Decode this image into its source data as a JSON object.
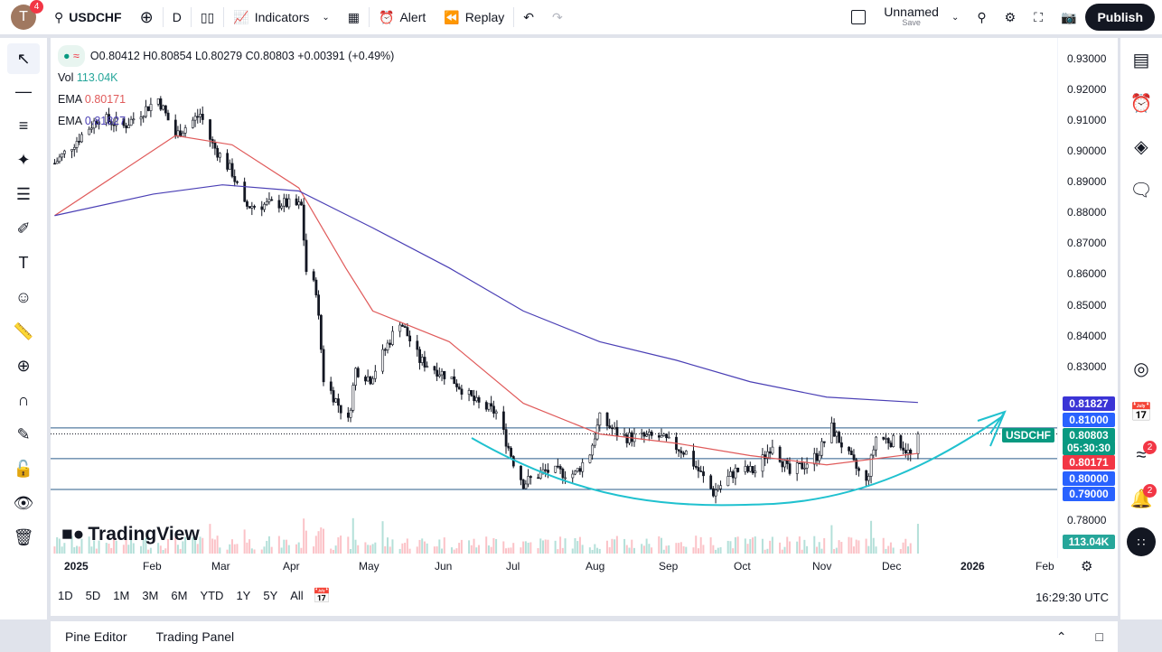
{
  "toolbar": {
    "avatar_letter": "T",
    "avatar_badge": "4",
    "symbol": "USDCHF",
    "interval": "D",
    "indicators": "Indicators",
    "alert": "Alert",
    "replay": "Replay",
    "layout_name": "Unnamed",
    "layout_save": "Save",
    "publish": "Publish"
  },
  "legend": {
    "ohlc": "O0.80412 H0.80854 L0.80279 C0.80803 +0.00391 (+0.49%)",
    "vol_label": "Vol",
    "vol_value": "113.04K",
    "ema1_label": "EMA",
    "ema1_value": "0.80171",
    "ema2_label": "EMA",
    "ema2_value": "0.81827"
  },
  "colors": {
    "up": "#089981",
    "down": "#f23645",
    "ema_fast": "#e05a5a",
    "ema_slow": "#4a3fb5",
    "drawing": "#20c1cf",
    "hline": "#2a5c8a"
  },
  "price_axis": {
    "ticks": [
      "0.93000",
      "0.92000",
      "0.91000",
      "0.90000",
      "0.89000",
      "0.88000",
      "0.87000",
      "0.86000",
      "0.85000",
      "0.84000",
      "0.83000",
      "0.78000"
    ],
    "tags": [
      {
        "text": "0.81827",
        "color": "#3b34d6"
      },
      {
        "text": "0.81000",
        "color": "#2962ff"
      },
      {
        "text": "0.80803",
        "color": "#089981"
      },
      {
        "text": "05:30:30",
        "color": "#089981"
      },
      {
        "text": "0.80171",
        "color": "#f23645"
      },
      {
        "text": "0.80000",
        "color": "#2962ff"
      },
      {
        "text": "0.79000",
        "color": "#2962ff"
      },
      {
        "text": "113.04K",
        "color": "#26a69a"
      }
    ],
    "symbol_tag": "USDCHF"
  },
  "time_axis": [
    "2025",
    "Feb",
    "Mar",
    "Apr",
    "May",
    "Jun",
    "Jul",
    "Aug",
    "Sep",
    "Oct",
    "Nov",
    "Dec",
    "2026",
    "Feb"
  ],
  "ranges": [
    "1D",
    "5D",
    "1M",
    "3M",
    "6M",
    "YTD",
    "1Y",
    "5Y",
    "All"
  ],
  "clock": "16:29:30 UTC",
  "watermark": "TradingView",
  "bottom": {
    "pine": "Pine Editor",
    "trading": "Trading Panel"
  },
  "right_badges": {
    "news": "2",
    "alerts": "2"
  },
  "chart_data": {
    "type": "candlestick",
    "symbol": "USDCHF",
    "interval": "1D",
    "ylim": [
      0.775,
      0.935
    ],
    "closes": [
      [
        "2024-12-23",
        0.896
      ],
      [
        "2025-01-10",
        0.911
      ],
      [
        "2025-01-20",
        0.908
      ],
      [
        "2025-02-03",
        0.917
      ],
      [
        "2025-02-10",
        0.905
      ],
      [
        "2025-02-20",
        0.912
      ],
      [
        "2025-02-25",
        0.902
      ],
      [
        "2025-03-05",
        0.893
      ],
      [
        "2025-03-10",
        0.882
      ],
      [
        "2025-03-25",
        0.883
      ],
      [
        "2025-04-02",
        0.882
      ],
      [
        "2025-04-04",
        0.861
      ],
      [
        "2025-04-08",
        0.855
      ],
      [
        "2025-04-11",
        0.826
      ],
      [
        "2025-04-21",
        0.812
      ],
      [
        "2025-04-24",
        0.829
      ],
      [
        "2025-04-30",
        0.826
      ],
      [
        "2025-05-12",
        0.845
      ],
      [
        "2025-05-20",
        0.832
      ],
      [
        "2025-06-02",
        0.826
      ],
      [
        "2025-06-12",
        0.818
      ],
      [
        "2025-06-20",
        0.815
      ],
      [
        "2025-06-27",
        0.799
      ],
      [
        "2025-07-01",
        0.792
      ],
      [
        "2025-07-10",
        0.796
      ],
      [
        "2025-07-22",
        0.795
      ],
      [
        "2025-07-28",
        0.802
      ],
      [
        "2025-08-01",
        0.813
      ],
      [
        "2025-08-10",
        0.807
      ],
      [
        "2025-08-25",
        0.807
      ],
      [
        "2025-09-05",
        0.802
      ],
      [
        "2025-09-16",
        0.789
      ],
      [
        "2025-09-25",
        0.796
      ],
      [
        "2025-10-03",
        0.796
      ],
      [
        "2025-10-10",
        0.805
      ],
      [
        "2025-10-17",
        0.795
      ],
      [
        "2025-10-28",
        0.801
      ],
      [
        "2025-11-03",
        0.81
      ],
      [
        "2025-11-12",
        0.798
      ],
      [
        "2025-11-17",
        0.792
      ],
      [
        "2025-11-21",
        0.807
      ],
      [
        "2025-12-01",
        0.805
      ],
      [
        "2025-12-05",
        0.801
      ],
      [
        "2025-12-08",
        0.80803
      ]
    ],
    "ema_fast": [
      [
        "2024-12-23",
        0.879
      ],
      [
        "2025-02-10",
        0.905
      ],
      [
        "2025-03-05",
        0.902
      ],
      [
        "2025-04-01",
        0.888
      ],
      [
        "2025-04-20",
        0.862
      ],
      [
        "2025-05-01",
        0.848
      ],
      [
        "2025-06-01",
        0.838
      ],
      [
        "2025-07-01",
        0.818
      ],
      [
        "2025-08-01",
        0.808
      ],
      [
        "2025-09-01",
        0.805
      ],
      [
        "2025-10-01",
        0.801
      ],
      [
        "2025-11-01",
        0.798
      ],
      [
        "2025-12-08",
        0.80171
      ]
    ],
    "ema_slow": [
      [
        "2024-12-23",
        0.879
      ],
      [
        "2025-02-01",
        0.886
      ],
      [
        "2025-03-01",
        0.889
      ],
      [
        "2025-04-01",
        0.887
      ],
      [
        "2025-05-01",
        0.875
      ],
      [
        "2025-06-01",
        0.862
      ],
      [
        "2025-07-01",
        0.848
      ],
      [
        "2025-08-01",
        0.838
      ],
      [
        "2025-09-01",
        0.832
      ],
      [
        "2025-10-01",
        0.825
      ],
      [
        "2025-11-01",
        0.82
      ],
      [
        "2025-12-08",
        0.81827
      ]
    ],
    "horizontal_lines": [
      0.81,
      0.8,
      0.79
    ],
    "current_price": 0.80803
  }
}
